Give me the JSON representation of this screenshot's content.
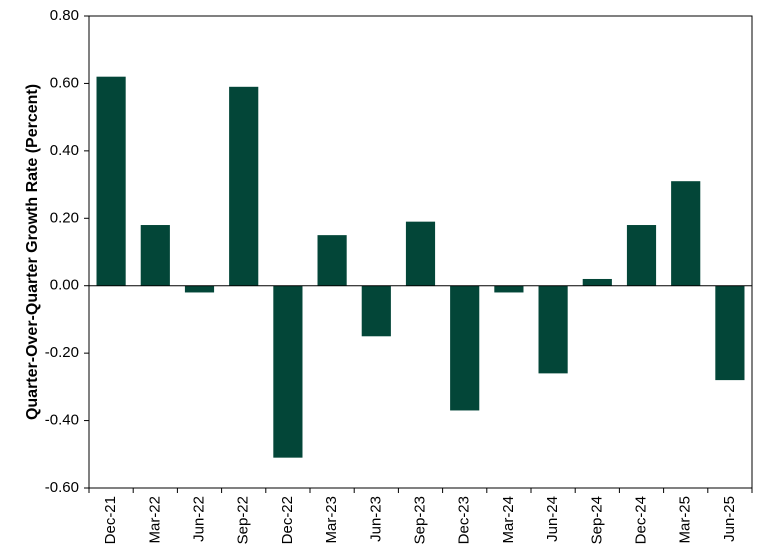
{
  "chart_data": {
    "type": "bar",
    "title": "",
    "xlabel": "",
    "ylabel": "Quarter-Over-Quarter Growth Rate (Percent)",
    "ylim": [
      -0.6,
      0.8
    ],
    "yticks": [
      0.8,
      0.6,
      0.4,
      0.2,
      0.0,
      -0.2,
      -0.4,
      -0.6
    ],
    "ytick_labels": [
      "0.80",
      "0.60",
      "0.40",
      "0.20",
      "0.00",
      "-0.20",
      "-0.40",
      "-0.60"
    ],
    "categories": [
      "Dec-21",
      "Mar-22",
      "Jun-22",
      "Sep-22",
      "Dec-22",
      "Mar-23",
      "Jun-23",
      "Sep-23",
      "Dec-23",
      "Mar-24",
      "Jun-24",
      "Sep-24",
      "Dec-24",
      "Mar-25",
      "Jun-25"
    ],
    "values": [
      0.62,
      0.18,
      -0.02,
      0.59,
      -0.51,
      0.15,
      -0.15,
      0.19,
      -0.37,
      -0.02,
      -0.26,
      0.02,
      0.18,
      0.31,
      -0.28
    ],
    "bar_color": "#034638",
    "grid": false,
    "legend": "none"
  }
}
